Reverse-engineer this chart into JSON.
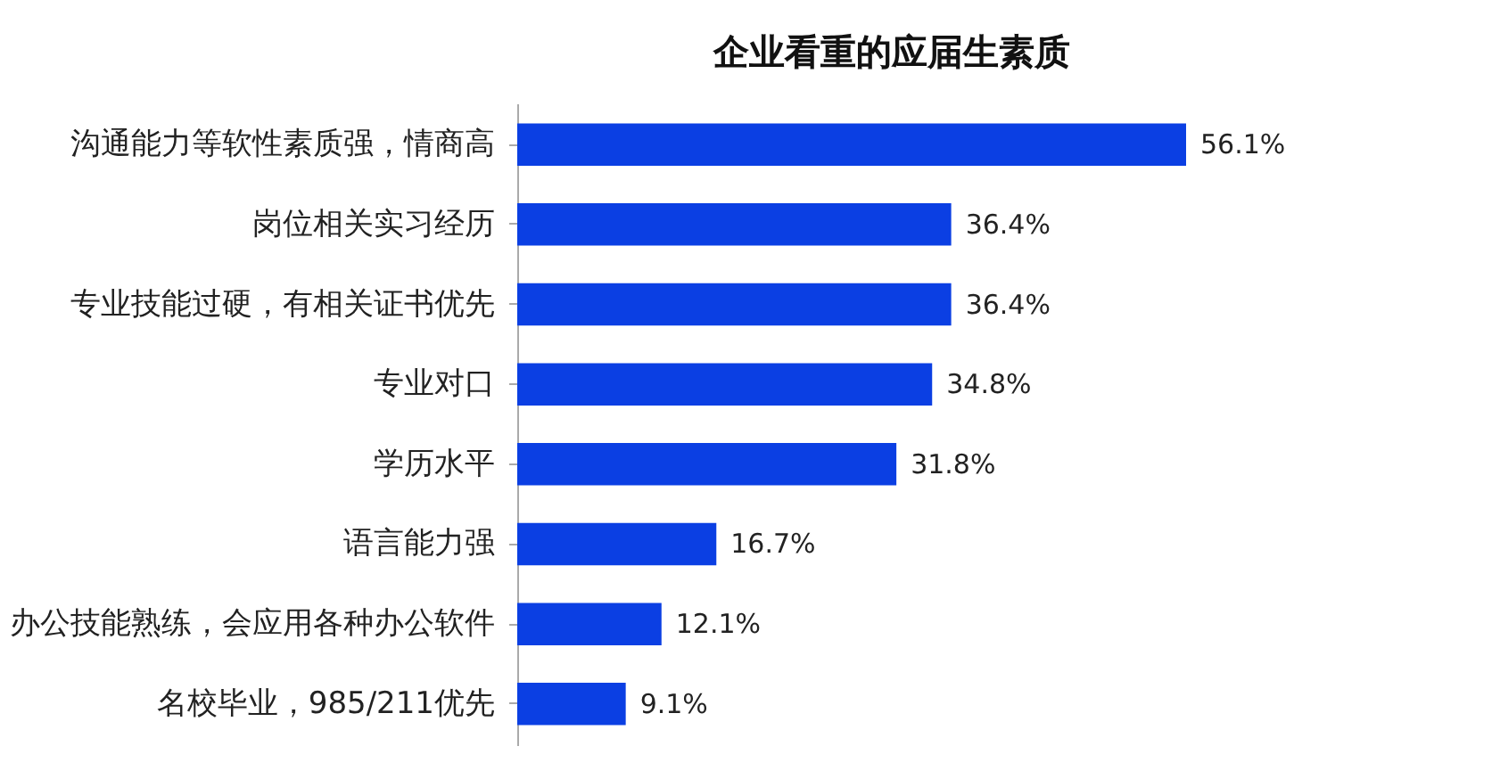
{
  "chart_data": {
    "type": "bar",
    "orientation": "horizontal",
    "title": "企业看重的应届生素质",
    "categories": [
      "沟通能力等软性素质强，情商高",
      "岗位相关实习经历",
      "专业技能过硬，有相关证书优先",
      "专业对口",
      "学历水平",
      "语言能力强",
      "办公技能熟练，会应用各种办公软件",
      "名校毕业，985/211优先"
    ],
    "values": [
      56.1,
      36.4,
      36.4,
      34.8,
      31.8,
      16.7,
      12.1,
      9.1
    ],
    "value_labels": [
      "56.1%",
      "36.4%",
      "36.4%",
      "34.8%",
      "31.8%",
      "16.7%",
      "12.1%",
      "9.1%"
    ],
    "color": "#0b3fe3"
  }
}
